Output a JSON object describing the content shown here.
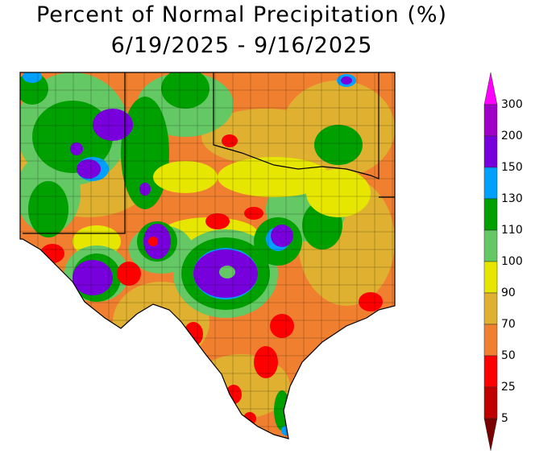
{
  "title": "Percent of Normal Precipitation (%)",
  "subtitle": "6/19/2025 - 9/16/2025",
  "legend": {
    "labels": [
      "300",
      "200",
      "150",
      "130",
      "110",
      "100",
      "90",
      "70",
      "50",
      "25",
      "5"
    ],
    "colors_top_to_bottom": [
      "#ff00ff",
      "#a000c8",
      "#7800dc",
      "#00a0ff",
      "#00a000",
      "#64c864",
      "#e6e600",
      "#e0b030",
      "#f08030",
      "#ff0000",
      "#c00000",
      "#780000"
    ]
  }
}
